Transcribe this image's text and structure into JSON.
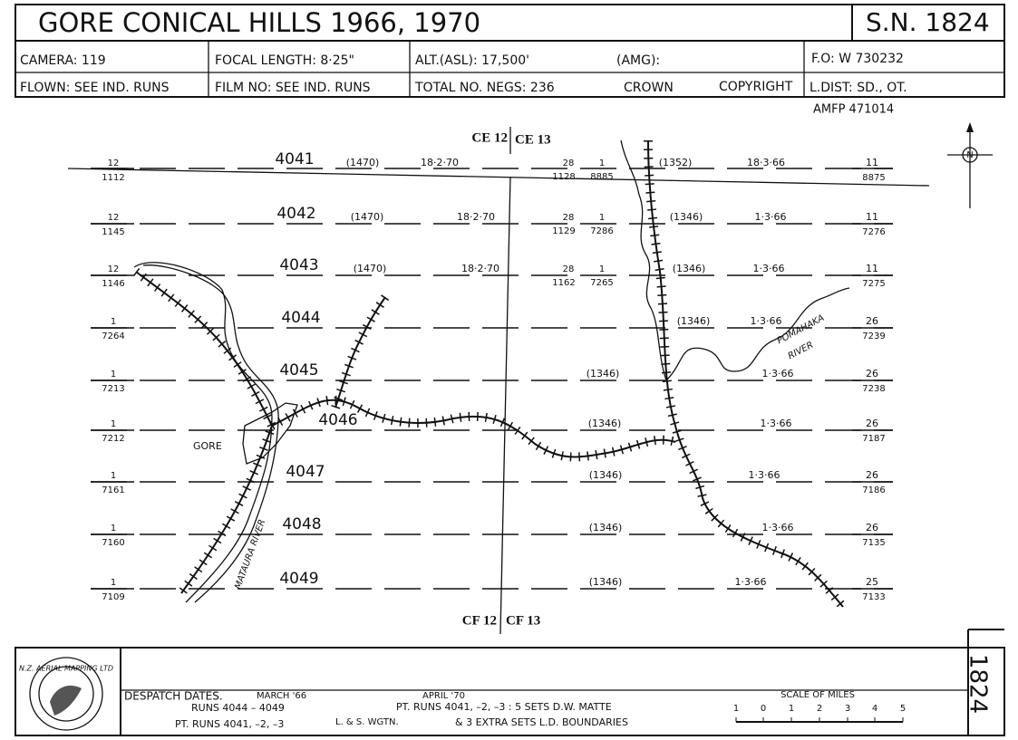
{
  "header": {
    "title": "GORE  CONICAL  HILLS   1966, 1970",
    "sn": "S.N. 1824",
    "row1": [
      "CAMERA:  119",
      "FOCAL LENGTH:  8·25\"",
      "ALT.(ASL):  17,500'",
      "(AMG):",
      "F.O: W 730232"
    ],
    "row2": [
      "FLOWN:  SEE  IND. RUNS",
      "FILM  NO:  SEE  IND.  RUNS",
      "TOTAL  NO.  NEGS: 236",
      "CROWN",
      "COPYRIGHT",
      "L.DIST:  SD., OT."
    ],
    "ref": "AMFP  471014"
  },
  "sheets": [
    "CE 12",
    "CE 13",
    "CF 12",
    "CF 13"
  ],
  "north": "N",
  "runs": [
    {
      "run": "4041",
      "start": [
        "12",
        "1112"
      ],
      "end": [
        "11",
        "8875"
      ],
      "marks": [
        "(1470)",
        "18·2·70",
        "(1352)",
        "18·3·66"
      ],
      "frame": [
        "28",
        "1",
        "1128",
        "8885"
      ]
    },
    {
      "run": "4042",
      "start": [
        "12",
        "1145"
      ],
      "end": [
        "11",
        "7276"
      ],
      "marks": [
        "(1470)",
        "18·2·70",
        "(1346)",
        "1·3·66"
      ],
      "frame": [
        "28",
        "1",
        "1129",
        "7286"
      ]
    },
    {
      "run": "4043",
      "start": [
        "12",
        "1146"
      ],
      "end": [
        "11",
        "7275"
      ],
      "marks": [
        "(1470)",
        "18·2·70",
        "(1346)",
        "1·3·66"
      ],
      "frame": [
        "28",
        "1",
        "1162",
        "7265"
      ]
    },
    {
      "run": "4044",
      "start": [
        "1",
        "7264"
      ],
      "end": [
        "26",
        "7239"
      ],
      "marks": [
        "(1346)",
        "1·3·66"
      ]
    },
    {
      "run": "4045",
      "start": [
        "1",
        "7213"
      ],
      "end": [
        "26",
        "7238"
      ],
      "marks": [
        "(1346)",
        "1·3·66"
      ]
    },
    {
      "run": "4046",
      "start": [
        "1",
        "7212"
      ],
      "end": [
        "26",
        "7187"
      ],
      "marks": [
        "(1346)",
        "1·3·66"
      ]
    },
    {
      "run": "4047",
      "start": [
        "1",
        "7161"
      ],
      "end": [
        "26",
        "7186"
      ],
      "marks": [
        "(1346)",
        "1·3·66"
      ]
    },
    {
      "run": "4048",
      "start": [
        "1",
        "7160"
      ],
      "end": [
        "26",
        "7135"
      ],
      "marks": [
        "(1346)",
        "1·3·66"
      ]
    },
    {
      "run": "4049",
      "start": [
        "1",
        "7109"
      ],
      "end": [
        "25",
        "7133"
      ],
      "marks": [
        "(1346)",
        "1·3·66"
      ]
    }
  ],
  "places": {
    "town": "GORE",
    "river1": [
      "POMAHAKA",
      "RIVER"
    ],
    "river2": "MATAURA RIVER"
  },
  "footer": {
    "logo": "N.Z. AERIAL MAPPING LTD",
    "despatch": "DESPATCH  DATES.",
    "march": "MARCH  '66",
    "runs": "RUNS  4044 – 4049",
    "april": "APRIL  '70",
    "pt1": "PT. RUNS  4041, –2, –3 : 5  SETS  D.W.  MATTE",
    "pt2": "PT.  RUNS   4041, –2, –3",
    "lands": "L. & S.  WGTN.",
    "extra": "&  3  EXTRA  SETS   L.D.  BOUNDARIES",
    "scale": "SCALE  OF  MILES",
    "scale_ticks": [
      "1",
      "0",
      "1",
      "2",
      "3",
      "4",
      "5"
    ],
    "side": "1824"
  }
}
